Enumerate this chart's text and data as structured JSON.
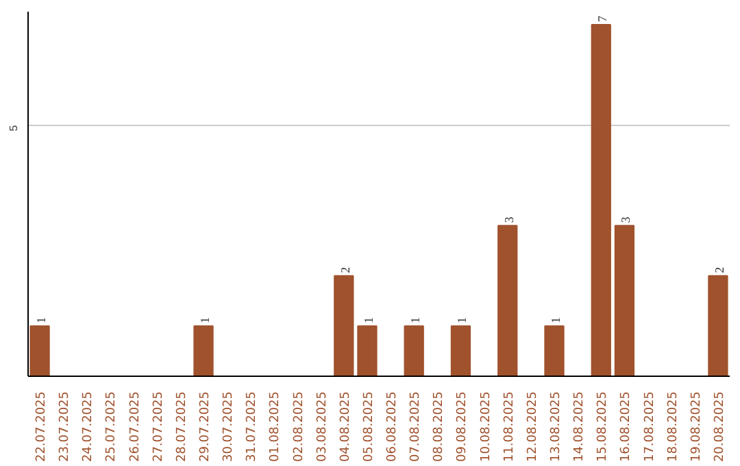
{
  "chart_data": {
    "type": "bar",
    "categories": [
      "22.07.2025",
      "23.07.2025",
      "24.07.2025",
      "25.07.2025",
      "26.07.2025",
      "27.07.2025",
      "28.07.2025",
      "29.07.2025",
      "30.07.2025",
      "31.07.2025",
      "01.08.2025",
      "02.08.2025",
      "03.08.2025",
      "04.08.2025",
      "05.08.2025",
      "06.08.2025",
      "07.08.2025",
      "08.08.2025",
      "09.08.2025",
      "10.08.2025",
      "11.08.2025",
      "12.08.2025",
      "13.08.2025",
      "14.08.2025",
      "15.08.2025",
      "16.08.2025",
      "17.08.2025",
      "18.08.2025",
      "19.08.2025",
      "20.08.2025"
    ],
    "values": [
      1,
      null,
      null,
      null,
      null,
      null,
      null,
      1,
      null,
      null,
      null,
      null,
      null,
      2,
      1,
      null,
      1,
      null,
      1,
      null,
      3,
      null,
      1,
      null,
      7,
      3,
      null,
      null,
      null,
      2
    ],
    "color": "#a0522d",
    "ylim": [
      0,
      7.26
    ],
    "yticks": [
      5
    ],
    "grid": "y",
    "data_labels": true
  }
}
